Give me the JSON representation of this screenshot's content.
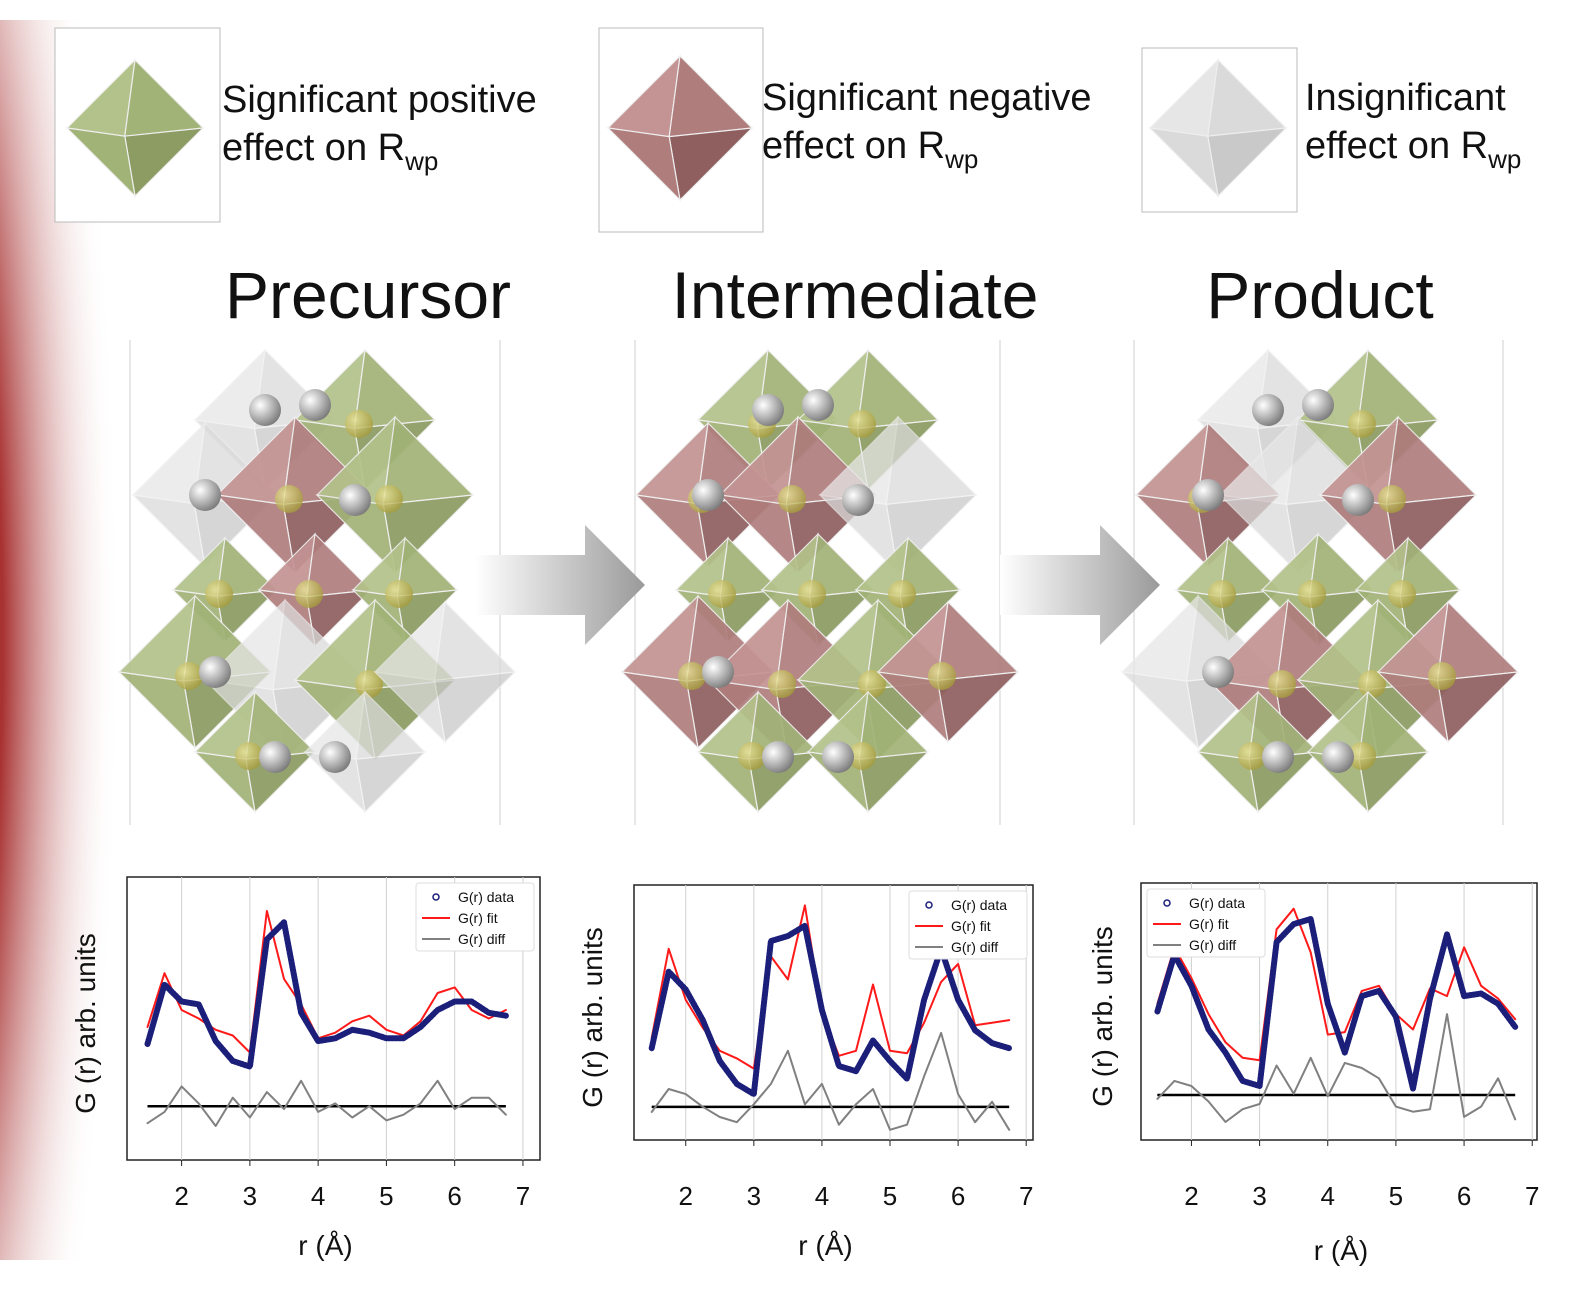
{
  "legend": [
    {
      "lines": [
        "Significant positive",
        "effect on R"
      ],
      "subscript": "wp"
    },
    {
      "lines": [
        "Significant negative",
        "effect on R"
      ],
      "subscript": "wp"
    },
    {
      "lines": [
        "Insignificant",
        "effect on R"
      ],
      "subscript": "wp"
    }
  ],
  "stages": [
    "Precursor",
    "Intermediate",
    "Product"
  ],
  "chart_data": [
    {
      "type": "line",
      "xlabel": "r (Å)",
      "ylabel": "G (r) arb. units",
      "x": [
        1.5,
        1.75,
        2.0,
        2.25,
        2.5,
        2.75,
        3.0,
        3.25,
        3.5,
        3.75,
        4.0,
        4.25,
        4.5,
        4.75,
        5.0,
        5.25,
        5.5,
        5.75,
        6.0,
        6.25,
        6.5,
        6.75
      ],
      "series": [
        {
          "name": "G(r) data",
          "color": "#1b1f7a",
          "marker": "o",
          "values": [
            4.1,
            6.2,
            5.6,
            5.5,
            4.2,
            3.5,
            3.3,
            7.8,
            8.4,
            5.2,
            4.2,
            4.3,
            4.6,
            4.5,
            4.3,
            4.3,
            4.7,
            5.3,
            5.6,
            5.6,
            5.2,
            5.1
          ]
        },
        {
          "name": "G(r) fit",
          "color": "#ff1a1a",
          "marker": "-",
          "values": [
            4.7,
            6.6,
            5.3,
            5.0,
            4.6,
            4.4,
            3.8,
            8.8,
            6.4,
            5.5,
            4.3,
            4.5,
            4.9,
            5.1,
            4.6,
            4.4,
            4.9,
            5.9,
            6.1,
            5.3,
            5.0,
            5.3
          ]
        },
        {
          "name": "G(r) diff",
          "color": "#808080",
          "marker": "-",
          "values": [
            1.3,
            1.7,
            2.6,
            2.0,
            1.2,
            2.2,
            1.5,
            2.4,
            1.8,
            2.8,
            1.7,
            2.0,
            1.5,
            1.9,
            1.4,
            1.6,
            2.0,
            2.8,
            1.8,
            2.2,
            2.2,
            1.6
          ]
        }
      ],
      "reference_line": 1.9,
      "xlim": [
        1.2,
        7.25
      ],
      "ylim": [
        0,
        10
      ],
      "xticks": [
        2,
        3,
        4,
        5,
        6,
        7
      ],
      "grid": true,
      "legend": "upper right"
    },
    {
      "type": "line",
      "xlabel": "r (Å)",
      "ylabel": "G (r) arb. units",
      "x": [
        1.5,
        1.75,
        2.0,
        2.25,
        2.5,
        2.75,
        3.0,
        3.25,
        3.5,
        3.75,
        4.0,
        4.25,
        4.5,
        4.75,
        5.0,
        5.25,
        5.5,
        5.75,
        6.0,
        6.25,
        6.5,
        6.75
      ],
      "series": [
        {
          "name": "G(r) data",
          "color": "#1b1f7a",
          "marker": "o",
          "values": [
            3.6,
            6.6,
            5.9,
            4.7,
            3.1,
            2.2,
            1.8,
            7.8,
            8.0,
            8.4,
            5.1,
            2.9,
            2.7,
            3.9,
            3.1,
            2.4,
            5.5,
            7.5,
            5.5,
            4.3,
            3.8,
            3.6
          ]
        },
        {
          "name": "G(r) fit",
          "color": "#ff1a1a",
          "marker": "-",
          "values": [
            4.0,
            7.5,
            5.5,
            4.4,
            3.5,
            3.2,
            2.8,
            7.2,
            6.3,
            9.2,
            5.0,
            3.3,
            3.5,
            6.1,
            3.5,
            3.4,
            4.6,
            6.2,
            6.9,
            4.5,
            4.6,
            4.7
          ]
        },
        {
          "name": "G(r) diff",
          "color": "#808080",
          "marker": "-",
          "values": [
            1.1,
            2.0,
            1.8,
            1.3,
            0.9,
            0.7,
            1.4,
            2.2,
            3.5,
            1.4,
            2.2,
            0.6,
            1.4,
            2.0,
            0.4,
            0.6,
            2.5,
            4.2,
            1.8,
            0.7,
            1.5,
            0.4
          ]
        }
      ],
      "reference_line": 1.3,
      "xlim": [
        1.24,
        7.1
      ],
      "ylim": [
        0,
        10
      ],
      "xticks": [
        2,
        3,
        4,
        5,
        6,
        7
      ],
      "grid": true,
      "legend": "upper right"
    },
    {
      "type": "line",
      "xlabel": "r (Å)",
      "ylabel": "G (r) arb. units",
      "x": [
        1.5,
        1.75,
        2.0,
        2.25,
        2.5,
        2.75,
        3.0,
        3.25,
        3.5,
        3.75,
        4.0,
        4.25,
        4.5,
        4.75,
        5.0,
        5.25,
        5.5,
        5.75,
        6.0,
        6.25,
        6.5,
        6.75
      ],
      "series": [
        {
          "name": "G(r) data",
          "color": "#1b1f7a",
          "marker": "o",
          "values": [
            5.0,
            7.2,
            6.0,
            4.3,
            3.4,
            2.3,
            2.1,
            7.7,
            8.4,
            8.6,
            5.3,
            3.4,
            5.6,
            5.8,
            4.8,
            2.0,
            5.5,
            8.0,
            5.6,
            5.7,
            5.3,
            4.4
          ]
        },
        {
          "name": "G(r) fit",
          "color": "#ff1a1a",
          "marker": "-",
          "values": [
            5.3,
            7.5,
            6.3,
            4.9,
            3.8,
            3.2,
            3.1,
            8.2,
            9.0,
            7.3,
            4.1,
            4.2,
            5.8,
            6.0,
            4.9,
            4.3,
            5.9,
            5.6,
            7.5,
            6.0,
            5.5,
            4.7
          ]
        },
        {
          "name": "G(r) diff",
          "color": "#808080",
          "marker": "-",
          "values": [
            1.6,
            2.3,
            2.1,
            1.5,
            0.7,
            1.2,
            1.4,
            2.9,
            1.8,
            3.2,
            1.7,
            3.0,
            2.8,
            2.4,
            1.3,
            1.1,
            1.2,
            4.9,
            0.9,
            1.3,
            2.4,
            0.8
          ]
        }
      ],
      "reference_line": 1.75,
      "xlim": [
        1.26,
        7.07
      ],
      "ylim": [
        0,
        10
      ],
      "xticks": [
        2,
        3,
        4,
        5,
        6,
        7
      ],
      "grid": true,
      "legend": "upper left"
    }
  ]
}
